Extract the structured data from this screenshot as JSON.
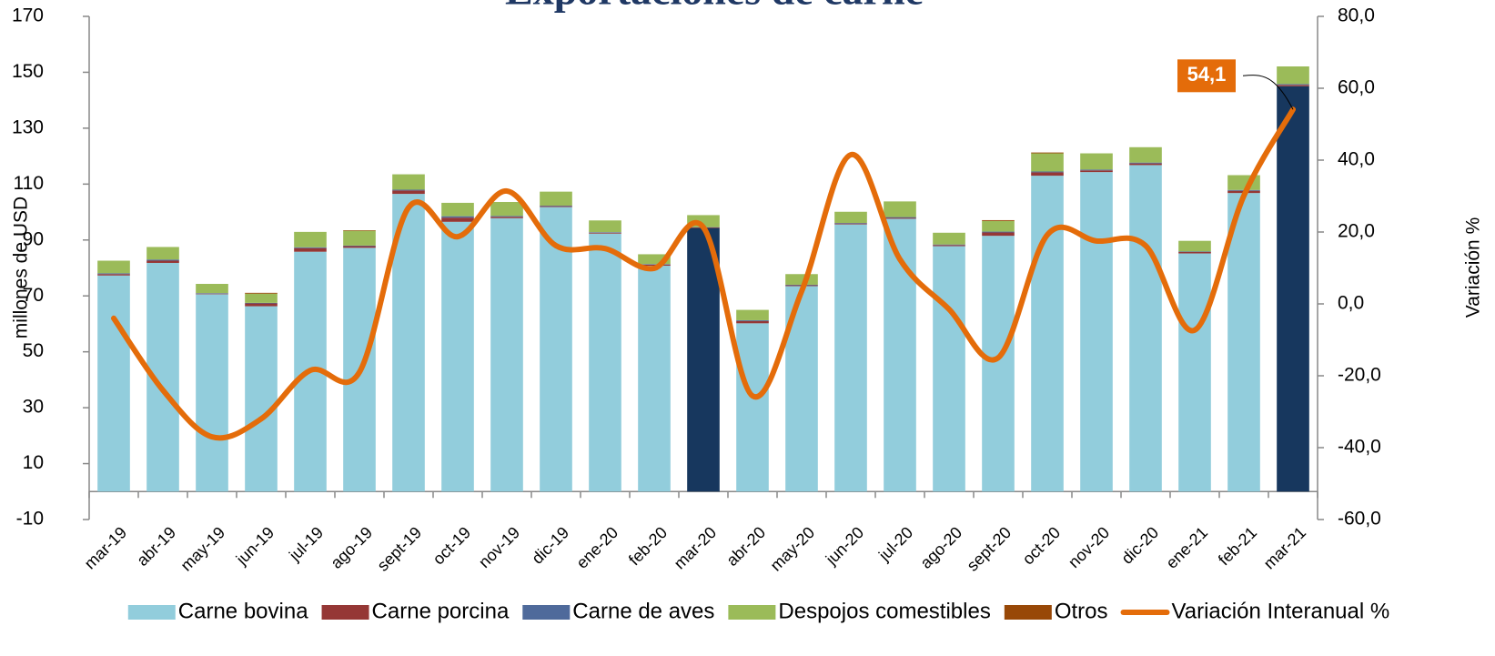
{
  "chart_data": {
    "type": "bar",
    "title": "Exportaciones de carne",
    "ylabel": "millones de  USD",
    "y2label": "Variación %",
    "categories": [
      "mar-19",
      "abr-19",
      "may-19",
      "jun-19",
      "jul-19",
      "ago-19",
      "sept-19",
      "oct-19",
      "nov-19",
      "dic-19",
      "ene-20",
      "feb-20",
      "mar-20",
      "abr-20",
      "may-20",
      "jun-20",
      "jul-20",
      "ago-20",
      "sept-20",
      "oct-20",
      "nov-20",
      "dic-20",
      "ene-21",
      "feb-21",
      "mar-21"
    ],
    "series": [
      {
        "name": "Carne bovina",
        "color": "#92cddc",
        "colors": [
          "#92cddc",
          "#92cddc",
          "#92cddc",
          "#92cddc",
          "#92cddc",
          "#92cddc",
          "#92cddc",
          "#92cddc",
          "#92cddc",
          "#92cddc",
          "#92cddc",
          "#92cddc",
          "#17375e",
          "#92cddc",
          "#92cddc",
          "#92cddc",
          "#92cddc",
          "#92cddc",
          "#92cddc",
          "#92cddc",
          "#92cddc",
          "#92cddc",
          "#92cddc",
          "#92cddc",
          "#17375e"
        ],
        "values": [
          77.3,
          81.8,
          70.6,
          66.3,
          85.8,
          87.2,
          106.5,
          96.5,
          97.8,
          101.8,
          92.3,
          80.8,
          94.3,
          60.2,
          73.5,
          95.6,
          97.6,
          87.8,
          91.5,
          113.0,
          114.3,
          116.8,
          85.2,
          106.8,
          145.0
        ]
      },
      {
        "name": "Carne porcina",
        "color": "#953735",
        "values": [
          0.5,
          0.8,
          0.2,
          1.0,
          1.3,
          0.6,
          1.2,
          1.5,
          0.5,
          0.3,
          0.3,
          0.4,
          0.2,
          0.8,
          0.3,
          0.3,
          0.3,
          0.4,
          1.2,
          1.2,
          0.6,
          0.6,
          0.5,
          0.8,
          0.5
        ]
      },
      {
        "name": "Carne de aves",
        "color": "#4f6a9b",
        "values": [
          0.3,
          0.4,
          0.2,
          0.2,
          0.3,
          0.2,
          0.3,
          0.5,
          0.3,
          0.2,
          0.2,
          0.2,
          0.1,
          0.3,
          0.2,
          0.2,
          0.3,
          0.2,
          0.3,
          0.3,
          0.3,
          0.3,
          0.2,
          0.3,
          0.3
        ]
      },
      {
        "name": "Despojos comestibles",
        "color": "#9bbb59",
        "values": [
          4.5,
          4.5,
          3.3,
          3.3,
          5.5,
          5.3,
          5.5,
          4.8,
          5.0,
          5.0,
          4.2,
          3.5,
          4.3,
          3.7,
          3.8,
          4.0,
          5.6,
          4.2,
          3.8,
          6.5,
          5.8,
          5.5,
          3.8,
          5.3,
          6.3
        ]
      },
      {
        "name": "Otros",
        "color": "#984807",
        "values": [
          0,
          0,
          0,
          0.3,
          0,
          0.2,
          0,
          0,
          0,
          0,
          0,
          0,
          0,
          0,
          0,
          0,
          0,
          0,
          0.3,
          0.3,
          0,
          0,
          0,
          0,
          0
        ]
      },
      {
        "name": "Variación Interanual %",
        "color": "#e46c0a",
        "type": "line",
        "axis": "y2",
        "values": [
          -4,
          -24,
          -37,
          -32,
          -18.5,
          -19,
          26.8,
          18.7,
          31.4,
          16.2,
          15.4,
          9.9,
          21.3,
          -25.6,
          3.5,
          41.5,
          12.4,
          -1.5,
          -15,
          19.2,
          17.5,
          16.2,
          -7.3,
          30.1,
          54.1
        ],
        "value_labels": [
          null,
          null,
          null,
          null,
          null,
          null,
          null,
          null,
          null,
          null,
          null,
          null,
          null,
          null,
          null,
          null,
          null,
          null,
          null,
          null,
          null,
          null,
          null,
          null,
          "54,1"
        ]
      }
    ],
    "ylim": [
      -10,
      170
    ],
    "yticks": [
      -10,
      10,
      30,
      50,
      70,
      90,
      110,
      130,
      150,
      170
    ],
    "y2lim": [
      -60,
      80
    ],
    "y2ticks": [
      {
        "value": -60,
        "label": "-60,0"
      },
      {
        "value": -40,
        "label": "-40,0"
      },
      {
        "value": -20,
        "label": "-20,0"
      },
      {
        "value": 0,
        "label": "0,0"
      },
      {
        "value": 20,
        "label": "20,0"
      },
      {
        "value": 40,
        "label": "40,0"
      },
      {
        "value": 60,
        "label": "60,0"
      },
      {
        "value": 80,
        "label": "80,0"
      }
    ],
    "legend": "bottom"
  }
}
